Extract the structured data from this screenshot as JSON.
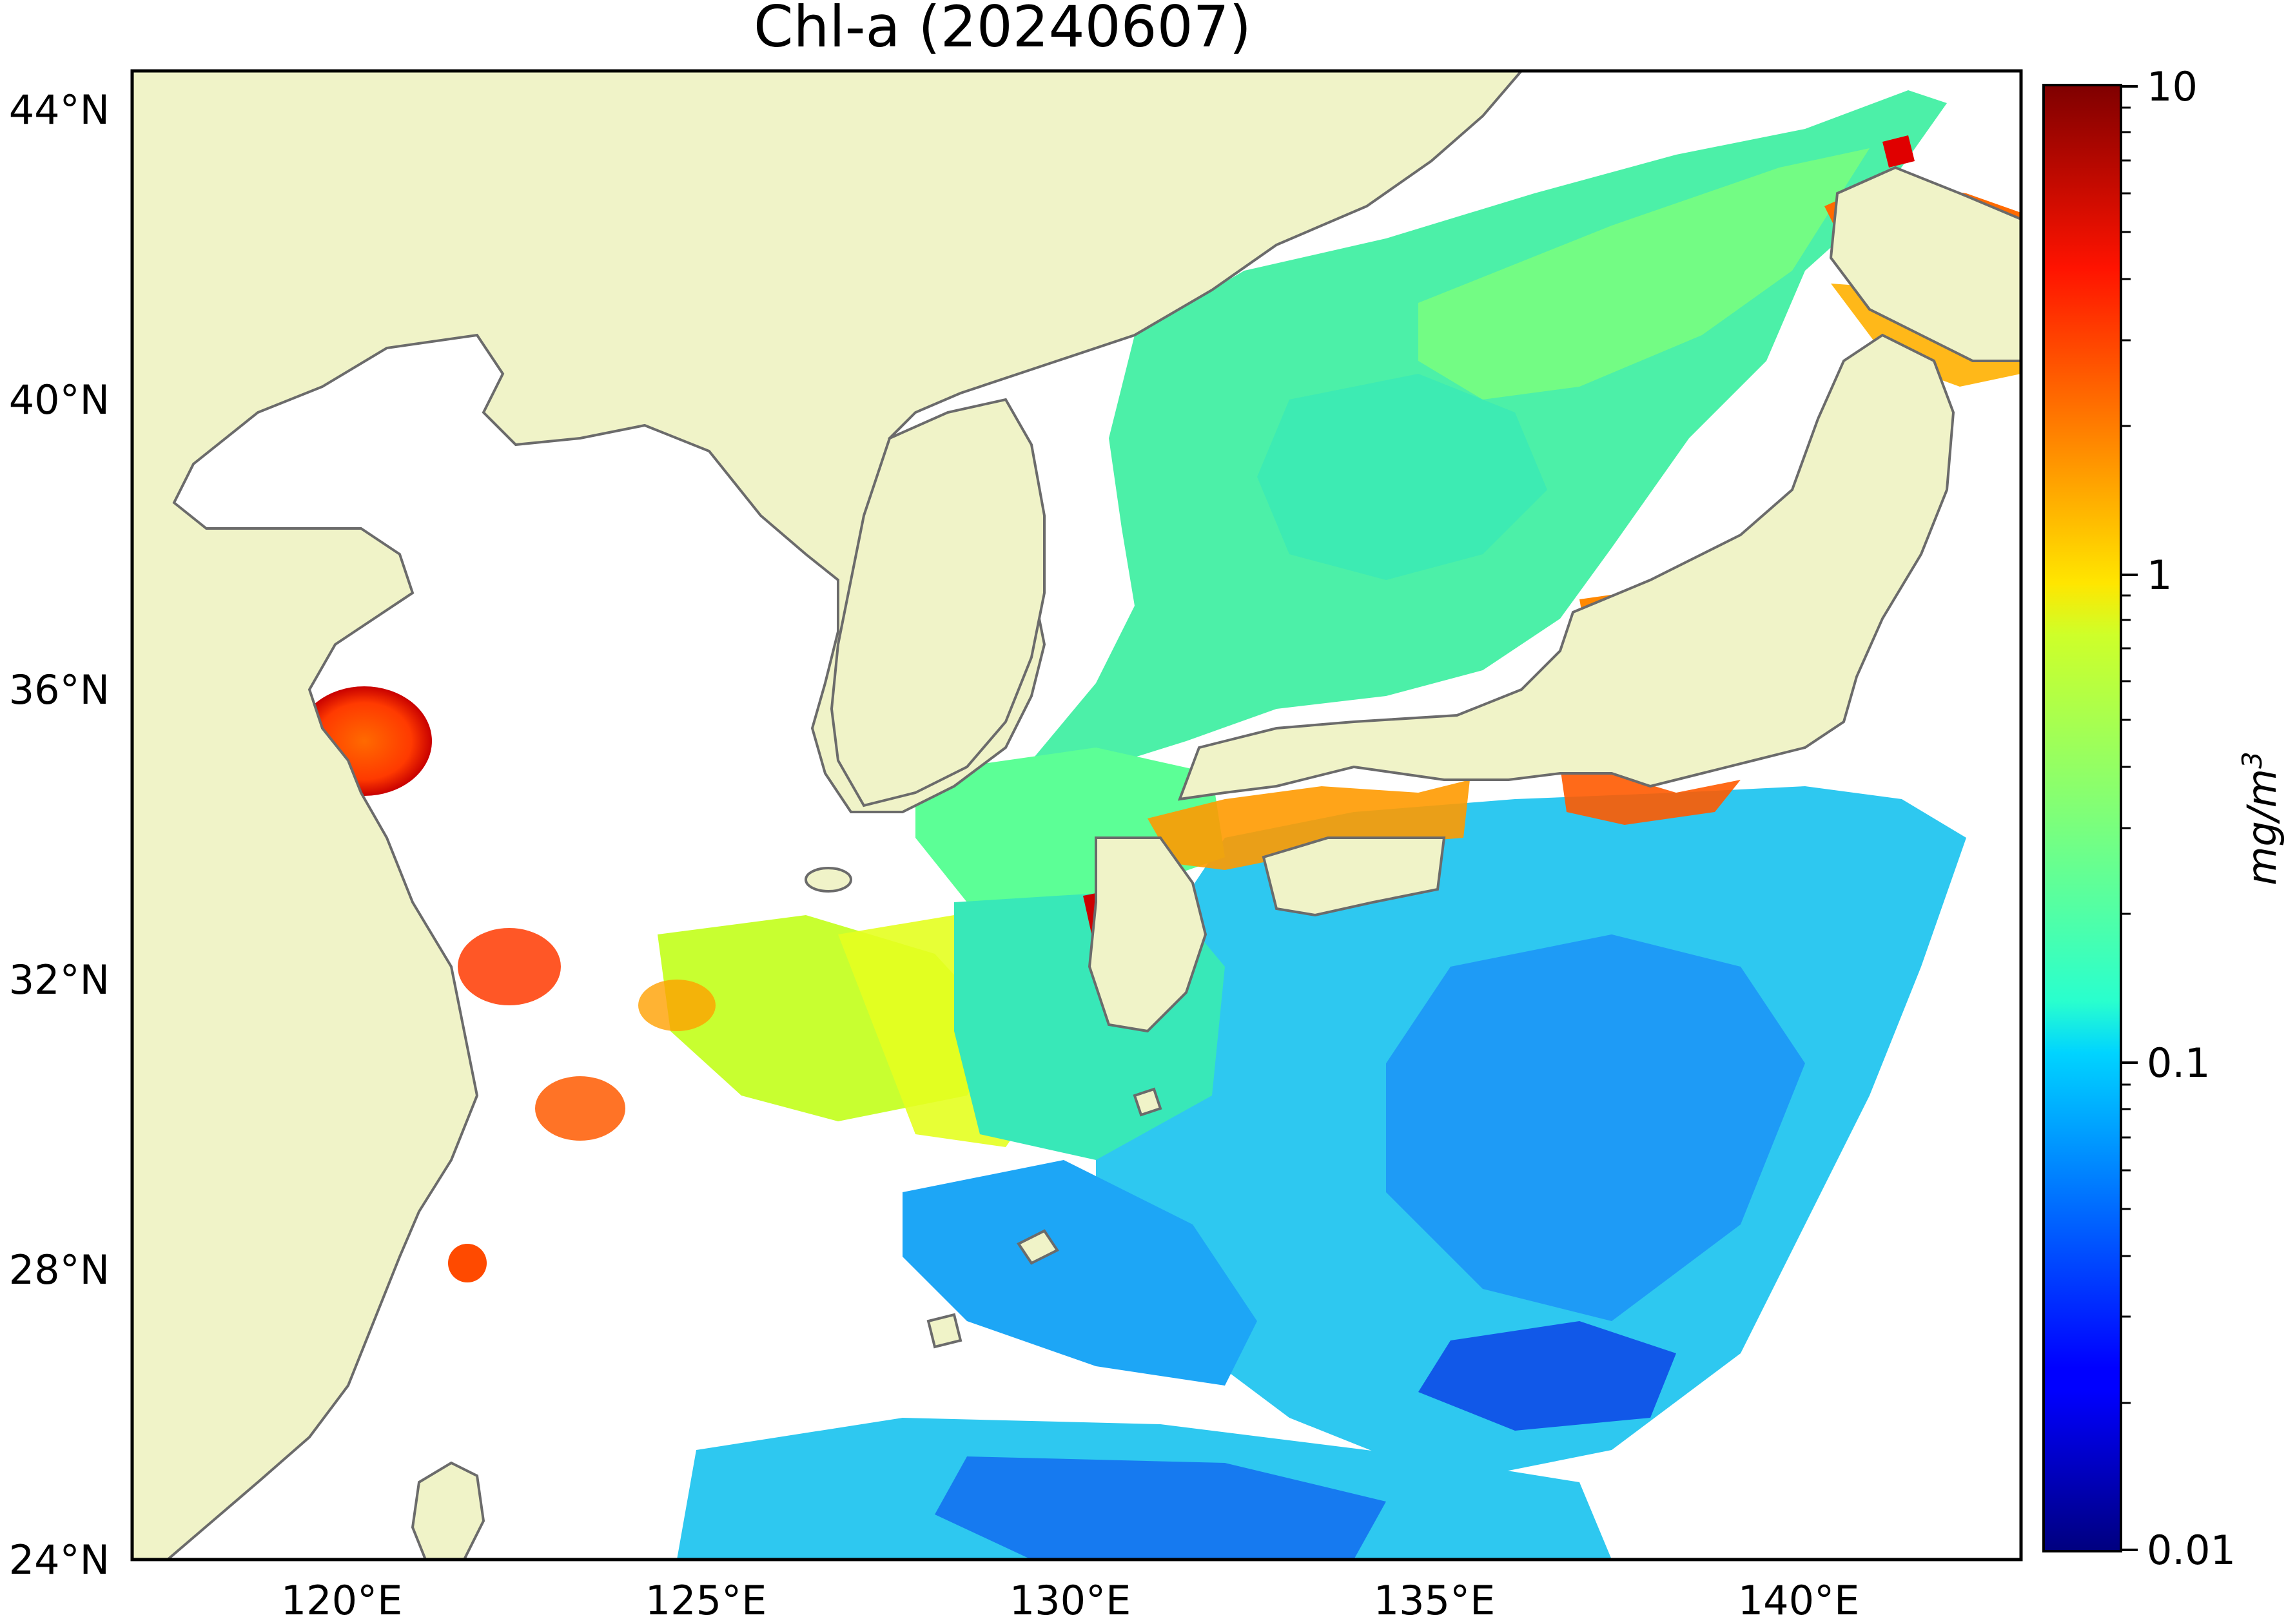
{
  "title": "Chl-a (20240607)",
  "map": {
    "lat_labels": [
      "44°N",
      "40°N",
      "36°N",
      "32°N",
      "28°N",
      "24°N"
    ],
    "lon_labels": [
      "120°E",
      "125°E",
      "130°E",
      "135°E",
      "140°E"
    ],
    "land_color": "#f0f3c8",
    "coast_color": "#6b6b6b",
    "nodata_color": "#ffffff"
  },
  "colorbar": {
    "colormap": "jet",
    "scale": "log",
    "range": [
      0.01,
      10
    ],
    "tick_labels": [
      "10",
      "1",
      "0.1",
      "0.01"
    ],
    "unit_label": "mg/m",
    "unit_superscript": "3"
  }
}
